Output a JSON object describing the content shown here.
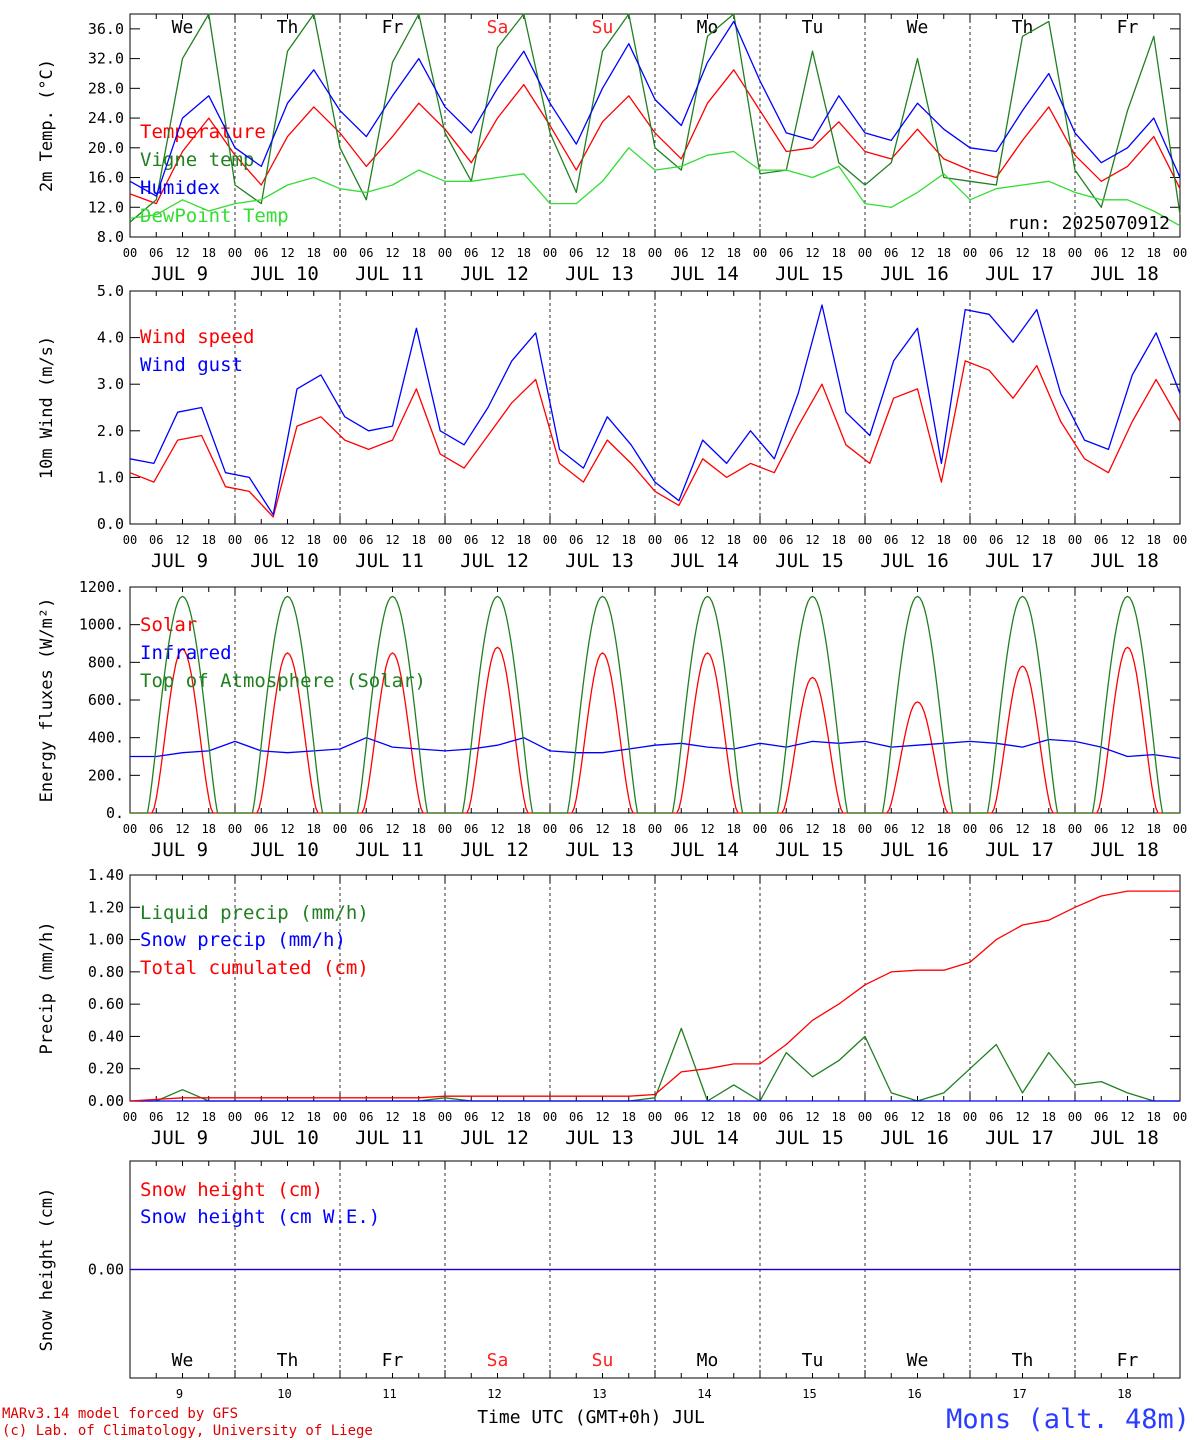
{
  "chart_data": [
    {
      "type": "line",
      "id": "temp",
      "ylabel": "2m Temp. (°C)",
      "ylim": [
        8,
        38
      ],
      "yticks": [
        "8.0",
        "12.0",
        "16.0",
        "20.0",
        "24.0",
        "28.0",
        "32.0",
        "36.0"
      ],
      "grid": false,
      "legend_position": "left",
      "annotation": "run: 2025070912",
      "weekdays": [
        "We",
        "Th",
        "Fr",
        "Sa",
        "Su",
        "Mo",
        "Tu",
        "We",
        "Th",
        "Fr"
      ],
      "weekday_colors": [
        "#000000",
        "#000000",
        "#000000",
        "#ff2020",
        "#ff2020",
        "#000000",
        "#000000",
        "#000000",
        "#000000",
        "#000000"
      ],
      "hour_labels": [
        "00",
        "06",
        "12",
        "18"
      ],
      "date_labels": [
        "JUL  9",
        "JUL 10",
        "JUL 11",
        "JUL 12",
        "JUL 13",
        "JUL 14",
        "JUL 15",
        "JUL 16",
        "JUL 17",
        "JUL 18"
      ],
      "hours_step": 6,
      "series": [
        {
          "name": "Temperature",
          "color": "#ff0000",
          "values": [
            13.8,
            12.5,
            19.5,
            24,
            19,
            15,
            21.5,
            25.5,
            22,
            17.5,
            21.5,
            26,
            22.5,
            18,
            24,
            28.5,
            23,
            17,
            23.5,
            27,
            22,
            18.5,
            26,
            30.5,
            25,
            19.5,
            20,
            23.5,
            19.5,
            18.5,
            22.5,
            18.5,
            17,
            16,
            21,
            25.5,
            19,
            15.5,
            17.5,
            21.5,
            14.5
          ]
        },
        {
          "name": "Vigne temp",
          "color": "#208020",
          "values": [
            10,
            13,
            32,
            38,
            15,
            12.5,
            33,
            38,
            20,
            13,
            31.5,
            38,
            22,
            15.5,
            33.5,
            38,
            22,
            14,
            33,
            38,
            20,
            17,
            35,
            38,
            16.5,
            17,
            33,
            18,
            15,
            18,
            32,
            16,
            15.5,
            15,
            35,
            37,
            17,
            12,
            25,
            35,
            11
          ]
        },
        {
          "name": "Humidex",
          "color": "#0000ff",
          "values": [
            15.5,
            13.5,
            24,
            27,
            20,
            17.5,
            26,
            30.5,
            25,
            21.5,
            27,
            32,
            25.5,
            22,
            28,
            33,
            26,
            20.5,
            28,
            34,
            26.5,
            23,
            31.5,
            37,
            29,
            22,
            21,
            27,
            22,
            21,
            26,
            22.5,
            20,
            19.5,
            25,
            30,
            22,
            18,
            20,
            24,
            16
          ]
        },
        {
          "name": "DewPoint Temp",
          "color": "#33dd33",
          "values": [
            10.5,
            11,
            13,
            11.5,
            12.5,
            13,
            15,
            16,
            14.5,
            14,
            15,
            17,
            15.5,
            15.5,
            16,
            16.5,
            12.5,
            12.5,
            15.5,
            20,
            17,
            17.5,
            19,
            19.5,
            17,
            17,
            16,
            17.5,
            12.5,
            12,
            14,
            16.5,
            13,
            14.5,
            15,
            15.5,
            14,
            13,
            13,
            11.5,
            9.5
          ]
        }
      ]
    },
    {
      "type": "line",
      "id": "wind",
      "ylabel": "10m Wind (m/s)",
      "ylim": [
        0,
        5
      ],
      "yticks": [
        "0.0",
        "1.0",
        "2.0",
        "3.0",
        "4.0",
        "5.0"
      ],
      "grid": false,
      "legend_position": "left",
      "hour_labels": [
        "00",
        "06",
        "12",
        "18"
      ],
      "date_labels": [
        "JUL  9",
        "JUL 10",
        "JUL 11",
        "JUL 12",
        "JUL 13",
        "JUL 14",
        "JUL 15",
        "JUL 16",
        "JUL 17",
        "JUL 18"
      ],
      "hours_step": 6,
      "series": [
        {
          "name": "Wind speed",
          "color": "#ff0000",
          "values": [
            1.1,
            0.9,
            1.8,
            1.9,
            0.8,
            0.7,
            0.15,
            2.1,
            2.3,
            1.8,
            1.6,
            1.8,
            2.9,
            1.5,
            1.2,
            1.9,
            2.6,
            3.1,
            1.3,
            0.9,
            1.8,
            1.3,
            0.7,
            0.4,
            1.4,
            1,
            1.3,
            1.1,
            2.1,
            3,
            1.7,
            1.3,
            2.7,
            2.9,
            0.9,
            3.5,
            3.3,
            2.7,
            3.4,
            2.2,
            1.4,
            1.1,
            2.2,
            3.1,
            2.2
          ]
        },
        {
          "name": "Wind gust",
          "color": "#0000ff",
          "values": [
            1.4,
            1.3,
            2.4,
            2.5,
            1.1,
            1.0,
            0.2,
            2.9,
            3.2,
            2.3,
            2.0,
            2.1,
            4.2,
            2.0,
            1.7,
            2.5,
            3.5,
            4.1,
            1.6,
            1.2,
            2.3,
            1.7,
            0.9,
            0.5,
            1.8,
            1.3,
            2.0,
            1.4,
            2.8,
            4.7,
            2.4,
            1.9,
            3.5,
            4.2,
            1.3,
            4.6,
            4.5,
            3.9,
            4.6,
            2.8,
            1.8,
            1.6,
            3.2,
            4.1,
            2.8
          ]
        }
      ]
    },
    {
      "type": "line",
      "id": "energy",
      "ylabel": "Energy fluxes (W/m²)",
      "ylim": [
        0,
        1200
      ],
      "yticks": [
        "0.",
        "200.",
        "400.",
        "600.",
        "800.",
        "1000.",
        "1200."
      ],
      "grid": false,
      "legend_position": "left",
      "hour_labels": [
        "00",
        "06",
        "12",
        "18"
      ],
      "date_labels": [
        "JUL  9",
        "JUL 10",
        "JUL 11",
        "JUL 12",
        "JUL 13",
        "JUL 14",
        "JUL 15",
        "JUL 16",
        "JUL 17",
        "JUL 18"
      ],
      "hours_step": 6,
      "series": [
        {
          "name": "Solar",
          "color": "#ff0000",
          "daily_peak": [
            870,
            850,
            850,
            880,
            850,
            850,
            720,
            590,
            780,
            880
          ]
        },
        {
          "name": "Infrared",
          "color": "#0000ff",
          "values": [
            300,
            300,
            320,
            330,
            380,
            330,
            320,
            330,
            340,
            400,
            350,
            340,
            330,
            340,
            360,
            400,
            330,
            320,
            320,
            340,
            360,
            370,
            350,
            340,
            370,
            350,
            380,
            370,
            380,
            350,
            360,
            370,
            380,
            370,
            350,
            390,
            380,
            350,
            300,
            310,
            290
          ]
        },
        {
          "name": "Top of Atmosphere (Solar)",
          "color": "#208020",
          "daily_peak": [
            1150,
            1150,
            1150,
            1150,
            1150,
            1150,
            1150,
            1150,
            1150,
            1150
          ]
        }
      ]
    },
    {
      "type": "line",
      "id": "precip",
      "ylabel": "Precip (mm/h)",
      "ylim": [
        0,
        1.4
      ],
      "yticks": [
        "0.00",
        "0.20",
        "0.40",
        "0.60",
        "0.80",
        "1.00",
        "1.20",
        "1.40"
      ],
      "grid": false,
      "legend_position": "left",
      "hour_labels": [
        "00",
        "06",
        "12",
        "18"
      ],
      "date_labels": [
        "JUL  9",
        "JUL 10",
        "JUL 11",
        "JUL 12",
        "JUL 13",
        "JUL 14",
        "JUL 15",
        "JUL 16",
        "JUL 17",
        "JUL 18"
      ],
      "hours_step": 6,
      "series": [
        {
          "name": "Liquid precip (mm/h)",
          "color": "#208020",
          "values": [
            0,
            0,
            0.07,
            0,
            0,
            0,
            0,
            0,
            0,
            0,
            0,
            0,
            0.02,
            0,
            0,
            0,
            0,
            0,
            0,
            0,
            0.02,
            0.45,
            0,
            0.1,
            0,
            0.3,
            0.15,
            0.25,
            0.4,
            0.05,
            0,
            0.05,
            0.2,
            0.35,
            0.05,
            0.3,
            0.1,
            0.12,
            0.05,
            0,
            0
          ]
        },
        {
          "name": "Snow precip (mm/h)",
          "color": "#0000ff",
          "values": [
            0,
            0,
            0,
            0,
            0,
            0,
            0,
            0,
            0,
            0,
            0,
            0,
            0,
            0,
            0,
            0,
            0,
            0,
            0,
            0,
            0,
            0,
            0,
            0,
            0,
            0,
            0,
            0,
            0,
            0,
            0,
            0,
            0,
            0,
            0,
            0,
            0,
            0,
            0,
            0,
            0
          ]
        },
        {
          "name": "Total cumulated (cm)",
          "color": "#ff0000",
          "values": [
            0,
            0.01,
            0.02,
            0.02,
            0.02,
            0.02,
            0.02,
            0.02,
            0.02,
            0.02,
            0.02,
            0.02,
            0.03,
            0.03,
            0.03,
            0.03,
            0.03,
            0.03,
            0.03,
            0.03,
            0.04,
            0.18,
            0.2,
            0.23,
            0.23,
            0.35,
            0.5,
            0.6,
            0.72,
            0.8,
            0.81,
            0.81,
            0.86,
            1.0,
            1.09,
            1.12,
            1.2,
            1.27,
            1.3,
            1.3,
            1.3
          ]
        }
      ]
    },
    {
      "type": "line",
      "id": "snow",
      "ylabel": "Snow height (cm)",
      "ylim": [
        -1,
        1
      ],
      "yticks": [
        "0.00"
      ],
      "grid": false,
      "legend_position": "left",
      "weekdays": [
        "We",
        "Th",
        "Fr",
        "Sa",
        "Su",
        "Mo",
        "Tu",
        "We",
        "Th",
        "Fr"
      ],
      "weekday_colors": [
        "#000000",
        "#000000",
        "#000000",
        "#ff2020",
        "#ff2020",
        "#000000",
        "#000000",
        "#000000",
        "#000000",
        "#000000"
      ],
      "day_numbers": [
        "9",
        "10",
        "11",
        "12",
        "13",
        "14",
        "15",
        "16",
        "17",
        "18"
      ],
      "xlabel": "Time UTC (GMT+0h) JUL",
      "series": [
        {
          "name": "Snow height (cm)",
          "color": "#ff0000",
          "values": [
            0,
            0
          ]
        },
        {
          "name": "Snow height (cm W.E.)",
          "color": "#0000ff",
          "values": [
            0,
            0
          ]
        }
      ]
    }
  ],
  "footer": {
    "model_line": "MARv3.14 model forced by GFS",
    "credit_line": "(c) Lab. of Climatology, University of Liege",
    "site": "Mons (alt. 48m)"
  }
}
